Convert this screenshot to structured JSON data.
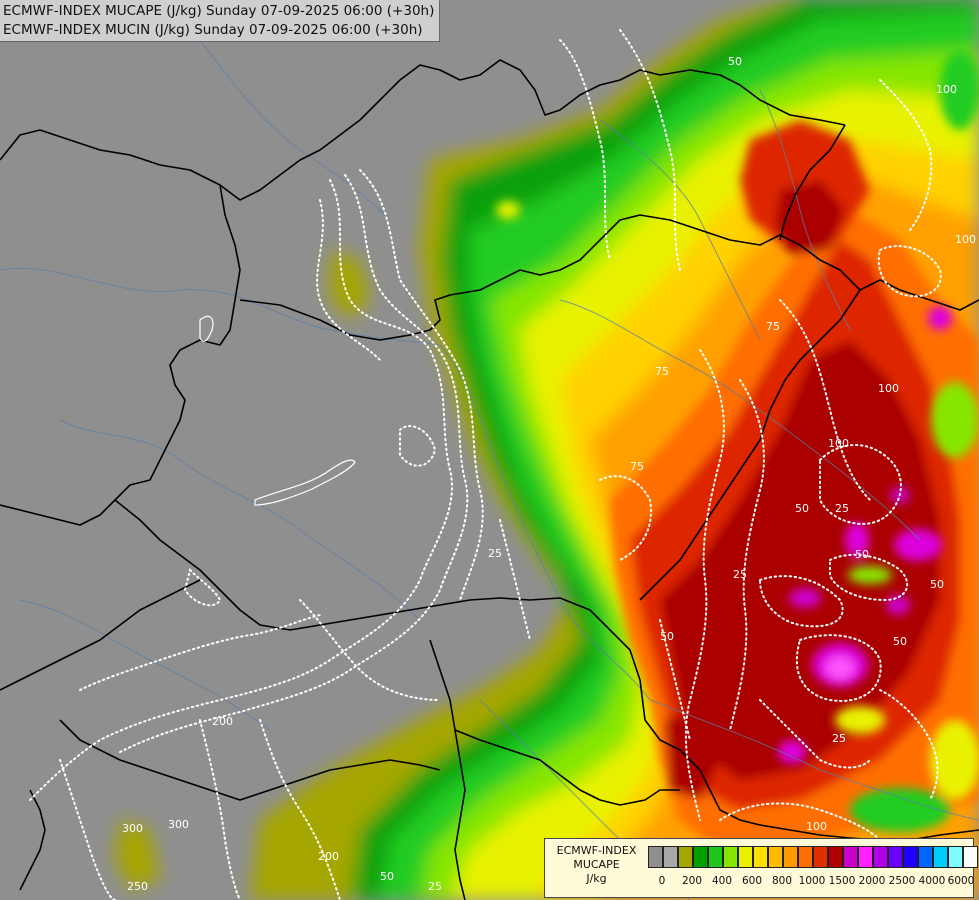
{
  "title": {
    "line1": "ECMWF-INDEX MUCAPE (J/kg) Sunday 07-09-2025 06:00 (+30h)",
    "line2": "ECMWF-INDEX MUCIN (J/kg) Sunday 07-09-2025 06:00 (+30h)"
  },
  "legend": {
    "line1": "ECMWF-INDEX",
    "line2": "MUCAPE",
    "line3": "J/kg",
    "colors": [
      "#8f8f8f",
      "#a8a8a8",
      "#a6a600",
      "#00a000",
      "#1ec61e",
      "#86e600",
      "#e8f200",
      "#ffe000",
      "#ffbb00",
      "#ff9a00",
      "#ff6e00",
      "#e03000",
      "#b00000",
      "#cc00cc",
      "#ff22ff",
      "#b000e8",
      "#6a00ff",
      "#2000ff",
      "#0066ff",
      "#00ccff",
      "#7ffcff",
      "#ffffff"
    ],
    "ticks": [
      "0",
      "200",
      "400",
      "600",
      "800",
      "1000",
      "1500",
      "2000",
      "2500",
      "4000",
      "6000"
    ]
  },
  "contour_labels": [
    "50",
    "75",
    "100",
    "100",
    "100",
    "25",
    "25",
    "50",
    "50",
    "50",
    "25",
    "50",
    "75",
    "200",
    "300",
    "300",
    "200",
    "250",
    "25",
    "50",
    "100",
    "100",
    "75",
    "50",
    "25"
  ]
}
